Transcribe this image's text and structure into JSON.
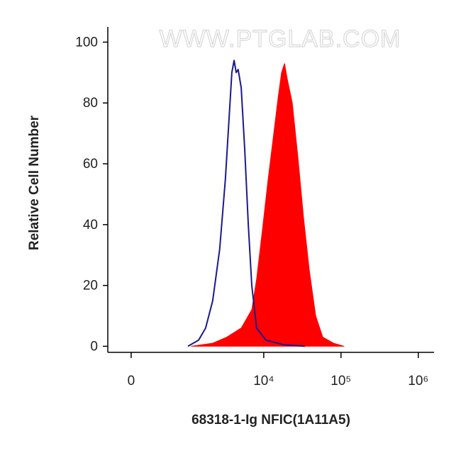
{
  "chart_data": {
    "type": "area",
    "watermark": "WWW.PTGLAB.COM",
    "xlabel": "68318-1-Ig NFIC(1A11A5)",
    "ylabel": "Relative Cell Number",
    "xscale": "biexponential",
    "xlim": [
      -290,
      1600000
    ],
    "xticks": [
      0,
      {
        "value": 10000,
        "label": "10⁴"
      },
      {
        "value": 100000,
        "label": "10⁵"
      },
      {
        "value": 1000000,
        "label": "10⁶"
      }
    ],
    "ylim": [
      -2,
      105
    ],
    "yticks": [
      0,
      20,
      40,
      60,
      80,
      100
    ],
    "series": [
      {
        "color": "#ff0000",
        "fill": true,
        "x": [
          1130,
          2170,
          3310,
          5110,
          7000,
          8090,
          9590,
          11400,
          13200,
          15400,
          17000,
          18600,
          20100,
          23400,
          27700,
          32800,
          38900,
          47000,
          58100,
          80100,
          109000
        ],
        "values": [
          0,
          1,
          3,
          6,
          12,
          22,
          38,
          55,
          68,
          82,
          90,
          93,
          88,
          80,
          62,
          42,
          25,
          10,
          3,
          1,
          0
        ]
      },
      {
        "color": "#1a1a8c",
        "fill": false,
        "x": [
          1010,
          1410,
          1750,
          2170,
          2680,
          3180,
          3550,
          3860,
          4130,
          4390,
          4660,
          5110,
          5660,
          6310,
          7000,
          8090,
          10700,
          18200,
          34200
        ],
        "values": [
          0,
          2,
          6,
          15,
          32,
          55,
          75,
          90,
          94,
          90,
          91,
          85,
          65,
          40,
          20,
          6,
          2,
          0.5,
          0
        ]
      }
    ]
  }
}
